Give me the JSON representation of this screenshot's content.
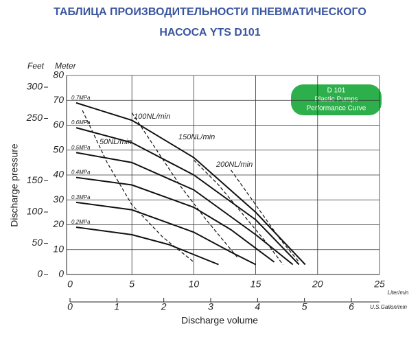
{
  "chart_data": {
    "type": "line",
    "title": [
      "ТАБЛИЦА ПРОИЗВОДИТЕЛЬНОСТИ ПНЕВМАТИЧЕСКОГО",
      "НАСОСА YTS D101"
    ],
    "badge": [
      "D 101",
      "Plastic Pumps",
      "Performance Curve"
    ],
    "y_unit_labels": [
      "Feet",
      "Meter"
    ],
    "ylabel": "Discharge pressure",
    "xlabel": "Discharge volume",
    "x_unit": "Liter/min",
    "x2_unit": "U.S.Gallon/min",
    "xlim": [
      0,
      25
    ],
    "xticks": [
      0,
      5,
      10,
      15,
      20,
      25
    ],
    "x2lim": [
      0,
      6.6
    ],
    "x2ticks": [
      0,
      1,
      2,
      3,
      4,
      5,
      6
    ],
    "ylim": [
      0,
      80
    ],
    "yticks": [
      0,
      10,
      20,
      30,
      40,
      50,
      60,
      70,
      80
    ],
    "y2lim": [
      0,
      318.7
    ],
    "y2ticks": [
      0,
      50,
      100,
      150,
      250,
      300
    ],
    "grid": true,
    "series": [
      {
        "name": "0.7MPa",
        "color": "#111",
        "dashed": false,
        "x": [
          0.5,
          5,
          10,
          15,
          19
        ],
        "values": [
          69,
          62,
          47,
          25,
          4
        ]
      },
      {
        "name": "0.6MPa",
        "color": "#111",
        "dashed": false,
        "x": [
          0.5,
          5,
          10,
          15,
          18.5
        ],
        "values": [
          59,
          53,
          40,
          22,
          4
        ]
      },
      {
        "name": "0.5MPa",
        "color": "#111",
        "dashed": false,
        "x": [
          0.5,
          5,
          10,
          15,
          18
        ],
        "values": [
          49,
          45,
          34,
          16,
          4
        ]
      },
      {
        "name": "0.4MPa",
        "color": "#111",
        "dashed": false,
        "x": [
          0.5,
          5,
          10,
          13,
          16.5
        ],
        "values": [
          39,
          36,
          27,
          18,
          5
        ]
      },
      {
        "name": "0.3MPa",
        "color": "#111",
        "dashed": false,
        "x": [
          0.5,
          5,
          10,
          13,
          15
        ],
        "values": [
          29,
          26,
          17,
          9,
          4
        ]
      },
      {
        "name": "0.2MPa",
        "color": "#111",
        "dashed": false,
        "x": [
          0.5,
          5,
          8,
          10,
          12
        ],
        "values": [
          19,
          16,
          12,
          8,
          4
        ]
      },
      {
        "name": "50NL/min",
        "color": "#111",
        "dashed": true,
        "x": [
          1,
          3,
          5,
          7.5,
          10
        ],
        "values": [
          66,
          45,
          28,
          15,
          5
        ]
      },
      {
        "name": "100NL/min",
        "color": "#111",
        "dashed": true,
        "x": [
          5,
          7,
          9,
          11,
          13.5
        ],
        "values": [
          65,
          50,
          35,
          22,
          7
        ]
      },
      {
        "name": "150NL/min",
        "color": "#111",
        "dashed": true,
        "x": [
          10,
          12,
          14,
          16,
          17.2
        ],
        "values": [
          46,
          36,
          24,
          12,
          4
        ]
      },
      {
        "name": "200NL/min",
        "color": "#111",
        "dashed": true,
        "x": [
          13,
          15,
          17,
          18.5
        ],
        "values": [
          42,
          28,
          14,
          5
        ]
      }
    ]
  }
}
